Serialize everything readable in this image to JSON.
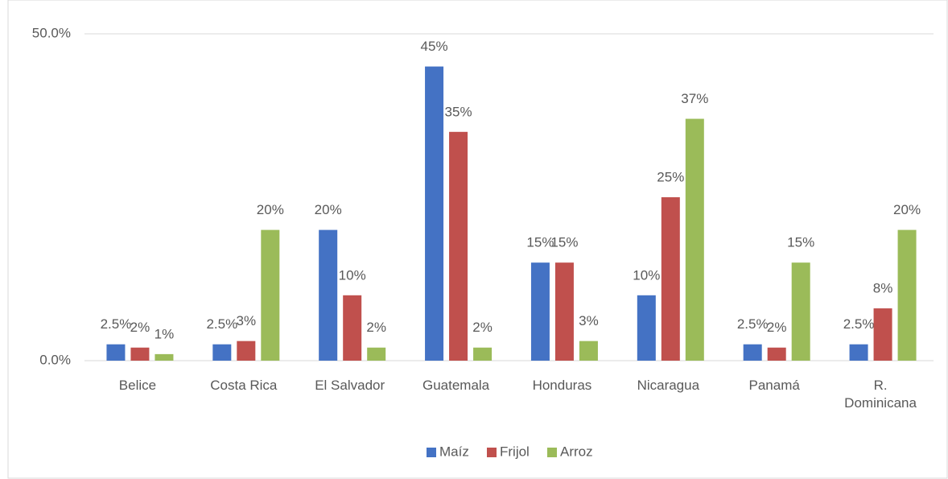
{
  "chart_data": {
    "type": "bar",
    "categories": [
      "Belice",
      "Costa Rica",
      "El Salvador",
      "Guatemala",
      "Honduras",
      "Nicaragua",
      "Panamá",
      "R. Dominicana"
    ],
    "series": [
      {
        "name": "Maíz",
        "color": "#4472c4",
        "values": [
          2.5,
          2.5,
          20,
          45,
          15,
          10,
          2.5,
          2.5
        ],
        "value_labels": [
          "2.5%",
          "2.5%",
          "20%",
          "45%",
          "15%",
          "10%",
          "2.5%",
          "2.5%"
        ]
      },
      {
        "name": "Frijol",
        "color": "#c0504d",
        "values": [
          2,
          3,
          10,
          35,
          15,
          25,
          2,
          8
        ],
        "value_labels": [
          "2%",
          "3%",
          "10%",
          "35%",
          "15%",
          "25%",
          "2%",
          "8%"
        ]
      },
      {
        "name": "Arroz",
        "color": "#9bbb59",
        "values": [
          1,
          20,
          2,
          2,
          3,
          37,
          15,
          20
        ],
        "value_labels": [
          "1%",
          "20%",
          "2%",
          "2%",
          "3%",
          "37%",
          "15%",
          "20%"
        ]
      }
    ],
    "ylim": [
      0,
      50
    ],
    "yticks": [
      {
        "value": 0,
        "label": "0.0%"
      },
      {
        "value": 50,
        "label": "50.0%"
      }
    ],
    "grid": true,
    "legend": "bottom"
  }
}
